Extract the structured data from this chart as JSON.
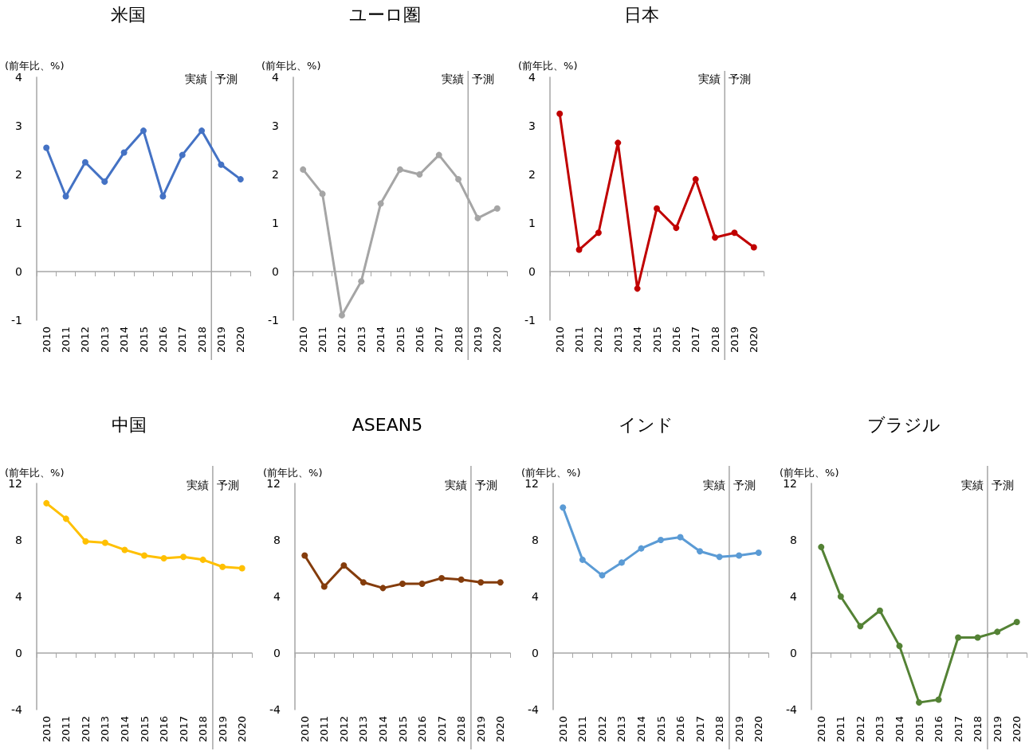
{
  "chart_data": [
    {
      "type": "line",
      "title": "米国",
      "ylabel": "(前年比、%)",
      "categories": [
        "2010",
        "2011",
        "2012",
        "2013",
        "2014",
        "2015",
        "2016",
        "2017",
        "2018",
        "2019",
        "2020"
      ],
      "series": [
        {
          "color": "#4472c4",
          "values": [
            2.55,
            1.55,
            2.25,
            1.85,
            2.45,
            2.9,
            1.55,
            2.4,
            2.9,
            2.2,
            1.9
          ]
        }
      ],
      "ylim": [
        -1,
        4
      ],
      "yticks": [
        -1,
        0,
        1,
        2,
        3,
        4
      ],
      "marker": "circle",
      "annotations": [
        "実績",
        "予測"
      ]
    },
    {
      "type": "line",
      "title": "ユーロ圏",
      "ylabel": "(前年比、%)",
      "categories": [
        "2010",
        "2011",
        "2012",
        "2013",
        "2014",
        "2015",
        "2016",
        "2017",
        "2018",
        "2019",
        "2020"
      ],
      "series": [
        {
          "color": "#a5a5a5",
          "values": [
            2.1,
            1.6,
            -0.9,
            -0.2,
            1.4,
            2.1,
            2.0,
            2.4,
            1.9,
            1.1,
            1.3
          ]
        }
      ],
      "ylim": [
        -1,
        4
      ],
      "yticks": [
        -1,
        0,
        1,
        2,
        3,
        4
      ],
      "marker": "circle",
      "annotations": [
        "実績",
        "予測"
      ]
    },
    {
      "type": "line",
      "title": "日本",
      "ylabel": "(前年比、%)",
      "categories": [
        "2010",
        "2011",
        "2012",
        "2013",
        "2014",
        "2015",
        "2016",
        "2017",
        "2018",
        "2019",
        "2020"
      ],
      "series": [
        {
          "color": "#c00000",
          "values": [
            3.25,
            0.45,
            0.8,
            2.65,
            -0.35,
            1.3,
            0.9,
            1.9,
            0.7,
            0.8,
            0.5
          ]
        }
      ],
      "ylim": [
        -1,
        4
      ],
      "yticks": [
        -1,
        0,
        1,
        2,
        3,
        4
      ],
      "marker": "circle",
      "annotations": [
        "実績",
        "予測"
      ]
    },
    {
      "type": "line",
      "title": "中国",
      "ylabel": "(前年比、%)",
      "categories": [
        "2010",
        "2011",
        "2012",
        "2013",
        "2014",
        "2015",
        "2016",
        "2017",
        "2018",
        "2019",
        "2020"
      ],
      "series": [
        {
          "color": "#ffc000",
          "values": [
            10.6,
            9.5,
            7.9,
            7.8,
            7.3,
            6.9,
            6.7,
            6.8,
            6.6,
            6.1,
            6.0
          ]
        }
      ],
      "ylim": [
        -4,
        12
      ],
      "yticks": [
        -4,
        0,
        4,
        8,
        12
      ],
      "marker": "circle",
      "annotations": [
        "実績",
        "予測"
      ]
    },
    {
      "type": "line",
      "title": "ASEAN5",
      "ylabel": "(前年比、%)",
      "categories": [
        "2010",
        "2011",
        "2012",
        "2013",
        "2014",
        "2015",
        "2016",
        "2017",
        "2018",
        "2019",
        "2020"
      ],
      "series": [
        {
          "color": "#843c0c",
          "values": [
            6.9,
            4.7,
            6.2,
            5.0,
            4.6,
            4.9,
            4.9,
            5.3,
            5.2,
            5.0,
            5.0
          ]
        }
      ],
      "ylim": [
        -4,
        12
      ],
      "yticks": [
        -4,
        0,
        4,
        8,
        12
      ],
      "marker": "circle",
      "annotations": [
        "実績",
        "予測"
      ]
    },
    {
      "type": "line",
      "title": "インド",
      "ylabel": "(前年比、%)",
      "categories": [
        "2010",
        "2011",
        "2012",
        "2013",
        "2014",
        "2015",
        "2016",
        "2017",
        "2018",
        "2019",
        "2020"
      ],
      "series": [
        {
          "color": "#5b9bd5",
          "values": [
            10.3,
            6.6,
            5.5,
            6.4,
            7.4,
            8.0,
            8.2,
            7.2,
            6.8,
            6.9,
            7.1
          ]
        }
      ],
      "ylim": [
        -4,
        12
      ],
      "yticks": [
        -4,
        0,
        4,
        8,
        12
      ],
      "marker": "circle",
      "annotations": [
        "実績",
        "予測"
      ]
    },
    {
      "type": "line",
      "title": "ブラジル",
      "ylabel": "(前年比、%)",
      "categories": [
        "2010",
        "2011",
        "2012",
        "2013",
        "2014",
        "2015",
        "2016",
        "2017",
        "2018",
        "2019",
        "2020"
      ],
      "series": [
        {
          "color": "#548235",
          "values": [
            7.5,
            4.0,
            1.9,
            3.0,
            0.5,
            -3.5,
            -3.3,
            1.1,
            1.1,
            1.5,
            2.2
          ]
        }
      ],
      "ylim": [
        -4,
        12
      ],
      "yticks": [
        -4,
        0,
        4,
        8,
        12
      ],
      "marker": "circle",
      "annotations": [
        "実績",
        "予測"
      ]
    }
  ]
}
